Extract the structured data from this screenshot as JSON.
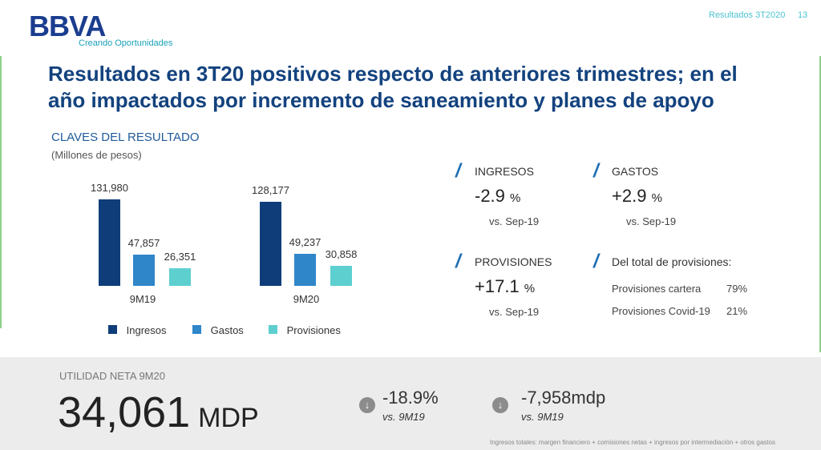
{
  "header": {
    "logo_text": "BBVA",
    "tagline": "Creando Oportunidades",
    "section_label": "Resultados 3T2020",
    "page_number": "13"
  },
  "title": "Resultados en 3T20 positivos respecto de anteriores trimestres; en el año impactados por incremento de saneamiento y planes de apoyo",
  "chart_section": {
    "title": "CLAVES DEL RESULTADO",
    "subtitle": "(Millones de pesos)"
  },
  "chart_data": {
    "type": "bar",
    "categories": [
      "9M19",
      "9M20"
    ],
    "series": [
      {
        "name": "Ingresos",
        "values": [
          131980,
          128177
        ],
        "labels": [
          "131,980",
          "128,177"
        ],
        "color": "#0f3d7a"
      },
      {
        "name": "Gastos",
        "values": [
          47857,
          49237
        ],
        "labels": [
          "47,857",
          "49,237"
        ],
        "color": "#2f86c9"
      },
      {
        "name": "Provisiones",
        "values": [
          26351,
          30858
        ],
        "labels": [
          "26,351",
          "30,858"
        ],
        "color": "#5dcfcf"
      }
    ],
    "ylim": [
      0,
      131980
    ],
    "legend_position": "bottom",
    "grid": false
  },
  "kpis": {
    "ingresos": {
      "title": "INGRESOS",
      "value": "-2.9",
      "unit": "%",
      "vs": "vs. Sep-19"
    },
    "gastos": {
      "title": "GASTOS",
      "value": "+2.9",
      "unit": "%",
      "vs": "vs. Sep-19"
    },
    "provisiones": {
      "title": "PROVISIONES",
      "value": "+17.1",
      "unit": "%",
      "vs": "vs. Sep-19"
    }
  },
  "provisions_breakdown": {
    "title": "Del total de provisiones:",
    "rows": [
      {
        "label": "Provisiones cartera",
        "value": "79%"
      },
      {
        "label": "Provisiones Covid-19",
        "value": "21%"
      }
    ]
  },
  "net_income": {
    "label": "UTILIDAD NETA 9M20",
    "value": "34,061",
    "unit": "MDP",
    "change_pct": "-18.9%",
    "change_pct_vs": "vs. 9M19",
    "change_abs": "-7,958mdp",
    "change_abs_vs": "vs. 9M19",
    "icon": "arrow-down-circle-icon"
  },
  "footnote": "Ingresos totales: margen financiero + comisiones netas + ingresos por intermediación + otros gastos"
}
